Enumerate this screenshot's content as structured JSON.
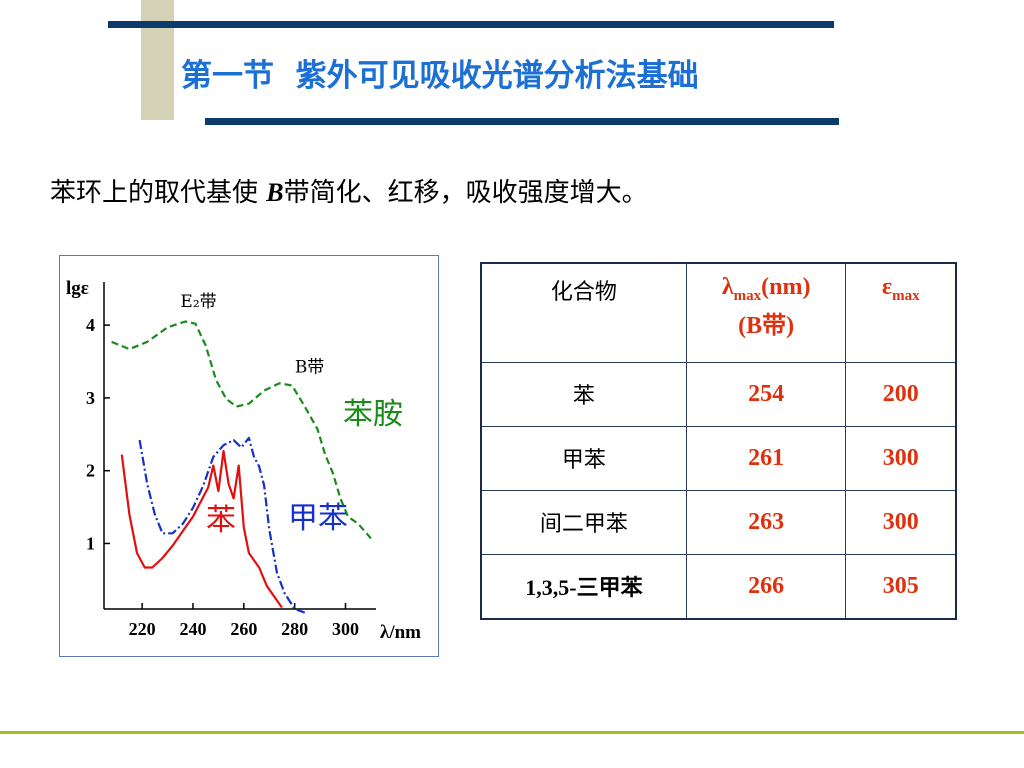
{
  "slide": {
    "title": "第一节  紫外可见吸收光谱分析法基础",
    "subtitle_pre": "苯环上的取代基使 ",
    "subtitle_b": "B",
    "subtitle_post": "带简化、红移，吸收强度增大。"
  },
  "table": {
    "header_compound": "化合物",
    "header_lambda_sym": "λ",
    "header_lambda_sub": "max",
    "header_lambda_unit": "(nm)",
    "header_lambda_line2": "(B带)",
    "header_eps_sym": "ε",
    "header_eps_sub": "max",
    "rows": [
      {
        "compound": "苯",
        "lambda": "254",
        "eps": "200"
      },
      {
        "compound": "甲苯",
        "lambda": "261",
        "eps": "300"
      },
      {
        "compound": "间二甲苯",
        "lambda": "263",
        "eps": "300"
      },
      {
        "compound": "1,3,5-三甲苯",
        "lambda": "266",
        "eps": "305"
      }
    ]
  },
  "chart_data": {
    "type": "line",
    "ylabel": "lgε",
    "xlabel": "λ/nm",
    "xlim": [
      205,
      312
    ],
    "ylim": [
      0.1,
      4.4
    ],
    "x_ticks": [
      220,
      240,
      260,
      280,
      300
    ],
    "y_ticks": [
      1,
      2,
      3,
      4
    ],
    "annotations": [
      {
        "text": "E₂带",
        "x": 239,
        "y": 4.25
      },
      {
        "text": "B带",
        "x": 284,
        "y": 3.35
      }
    ],
    "series": [
      {
        "name": "苯胺",
        "color": "#1a8a1a",
        "style": "dashed",
        "x": [
          208,
          215,
          222,
          230,
          237,
          241,
          245,
          249,
          253,
          257,
          262,
          268,
          274,
          279,
          284,
          289,
          292,
          295,
          298,
          301,
          305,
          310
        ],
        "y": [
          3.77,
          3.67,
          3.77,
          3.97,
          4.05,
          4.02,
          3.72,
          3.25,
          2.99,
          2.88,
          2.92,
          3.1,
          3.2,
          3.17,
          2.88,
          2.57,
          2.22,
          1.97,
          1.62,
          1.37,
          1.27,
          1.07
        ]
      },
      {
        "name": "甲苯",
        "color": "#1530cc",
        "style": "dashdot",
        "x": [
          219,
          222,
          225,
          228,
          232,
          236,
          240,
          244,
          248,
          252,
          256,
          259,
          262,
          264,
          266,
          268,
          270,
          273,
          276,
          280,
          284
        ],
        "y": [
          2.42,
          1.82,
          1.4,
          1.14,
          1.14,
          1.27,
          1.49,
          1.79,
          2.19,
          2.35,
          2.42,
          2.32,
          2.45,
          2.19,
          2.06,
          1.8,
          1.2,
          0.6,
          0.32,
          0.1,
          0.05
        ]
      },
      {
        "name": "苯",
        "color": "#e01010",
        "style": "solid",
        "x": [
          212,
          215,
          218,
          221,
          224,
          228,
          232,
          236,
          240,
          243,
          246,
          248,
          250,
          252,
          254,
          256,
          258,
          260,
          262,
          264,
          266,
          269,
          272,
          275
        ],
        "y": [
          2.22,
          1.4,
          0.87,
          0.67,
          0.67,
          0.8,
          0.97,
          1.17,
          1.37,
          1.57,
          1.77,
          2.07,
          1.72,
          2.27,
          1.82,
          1.62,
          2.07,
          1.22,
          0.87,
          0.77,
          0.67,
          0.42,
          0.27,
          0.12
        ]
      }
    ]
  }
}
